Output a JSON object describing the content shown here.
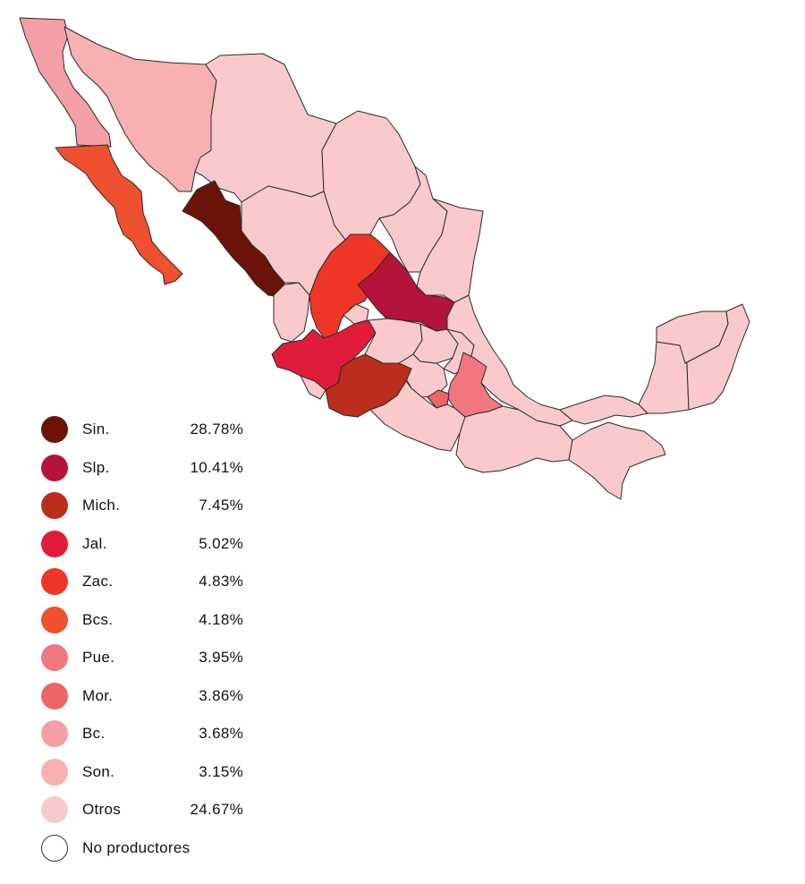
{
  "legend": [
    {
      "key": "sin",
      "label": "Sin.",
      "value": "28.78%",
      "color": "#6b1308"
    },
    {
      "key": "slp",
      "label": "Slp.",
      "value": "10.41%",
      "color": "#b5143a"
    },
    {
      "key": "mich",
      "label": "Mich.",
      "value": "7.45%",
      "color": "#bb2e1e"
    },
    {
      "key": "jal",
      "label": "Jal.",
      "value": "5.02%",
      "color": "#e11b3a"
    },
    {
      "key": "zac",
      "label": "Zac.",
      "value": "4.83%",
      "color": "#ef3526"
    },
    {
      "key": "bcs",
      "label": "Bcs.",
      "value": "4.18%",
      "color": "#ef5030"
    },
    {
      "key": "pue",
      "label": "Pue.",
      "value": "3.95%",
      "color": "#f27680"
    },
    {
      "key": "mor",
      "label": "Mor.",
      "value": "3.86%",
      "color": "#ef6563"
    },
    {
      "key": "bc",
      "label": "Bc.",
      "value": "3.68%",
      "color": "#f49ea5"
    },
    {
      "key": "son",
      "label": "Son.",
      "value": "3.15%",
      "color": "#f8b0b0"
    },
    {
      "key": "otros",
      "label": "Otros",
      "value": "24.67%",
      "color": "#f9c9cc"
    },
    {
      "key": "none",
      "label": "No productores",
      "value": "",
      "color": "#ffffff"
    }
  ]
}
